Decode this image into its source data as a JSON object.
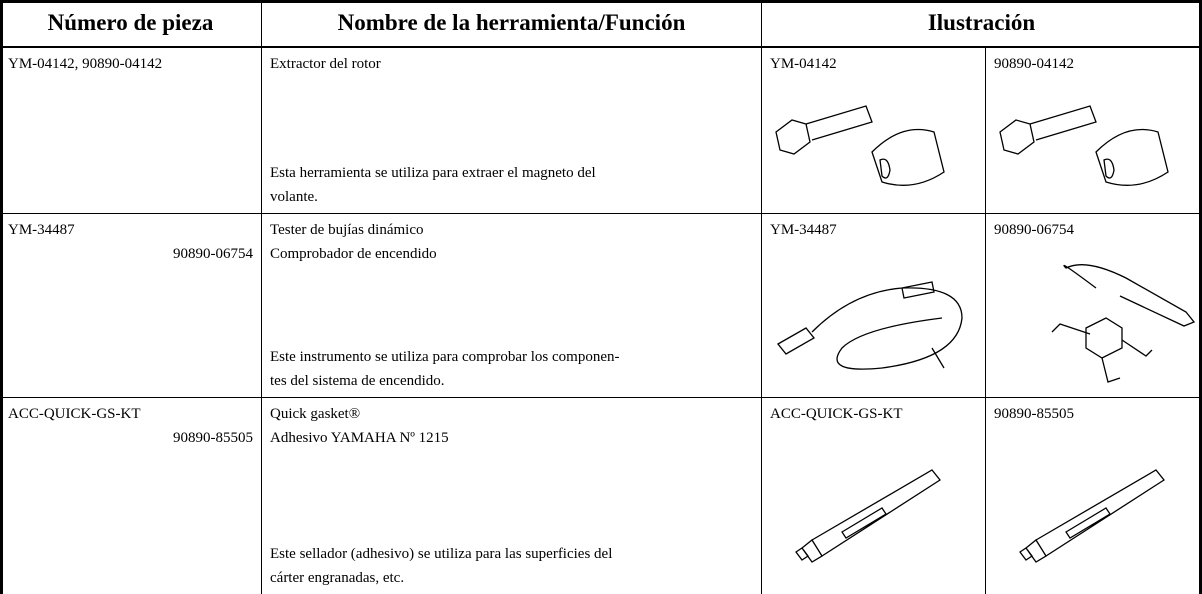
{
  "header": {
    "part_number": "Número de pieza",
    "tool_name": "Nombre de la herramienta/Función",
    "illustration": "Ilustración"
  },
  "rows": [
    {
      "part_numbers": [
        "YM-04142, 90890-04142"
      ],
      "names": [
        "Extractor del rotor"
      ],
      "description": [
        "Esta herramienta se utiliza para extraer el magneto del",
        "volante."
      ],
      "illustrations": [
        "YM-04142",
        "90890-04142"
      ]
    },
    {
      "part_numbers": [
        "YM-34487",
        "90890-06754"
      ],
      "names": [
        "Tester de bujías dinámico",
        "Comprobador de encendido"
      ],
      "description": [
        "Este instrumento se utiliza para comprobar los componen-",
        "tes del sistema de encendido."
      ],
      "illustrations": [
        "YM-34487",
        "90890-06754"
      ]
    },
    {
      "part_numbers": [
        "ACC-QUICK-GS-KT",
        "90890-85505"
      ],
      "names": [
        "Quick gasket®",
        "Adhesivo YAMAHA Nº 1215"
      ],
      "description": [
        "Este sellador (adhesivo) se utiliza para las superficies del",
        "cárter engranadas, etc."
      ],
      "illustrations": [
        "ACC-QUICK-GS-KT",
        "90890-85505"
      ]
    }
  ]
}
